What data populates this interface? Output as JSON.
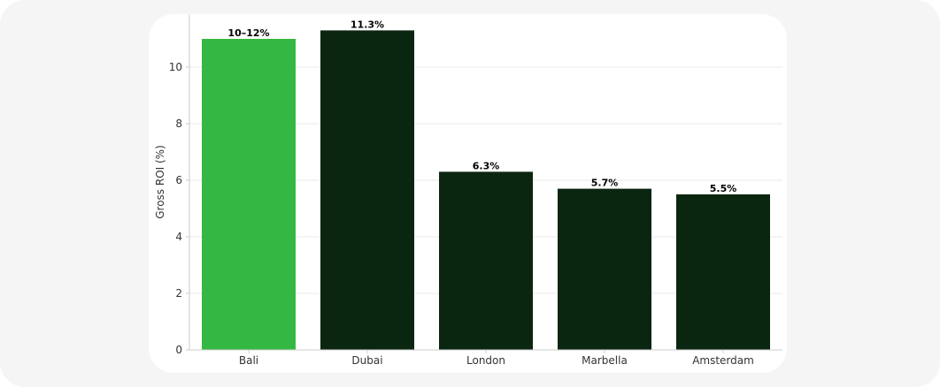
{
  "chart_data": {
    "type": "bar",
    "title": "",
    "xlabel": "",
    "ylabel": "Gross ROI (%)",
    "ylim": [
      0,
      11.9
    ],
    "yticks": [
      0,
      2,
      4,
      6,
      8,
      10
    ],
    "grid": true,
    "legend": false,
    "categories": [
      "Bali",
      "Dubai",
      "London",
      "Marbella",
      "Amsterdam"
    ],
    "values": [
      11,
      11.3,
      6.3,
      5.7,
      5.5
    ],
    "data_labels": [
      "10–12%",
      "11.3%",
      "6.3%",
      "5.7%",
      "5.5%"
    ],
    "colors": [
      "#34b843",
      "#0b2610",
      "#0b2610",
      "#0b2610",
      "#0b2610"
    ]
  },
  "colors": {
    "background": "#f5f5f5",
    "card": "#ffffff",
    "highlight": "#34b843",
    "bar": "#0b2610",
    "grid": "#e8e8e8",
    "axis": "#cccccc"
  }
}
